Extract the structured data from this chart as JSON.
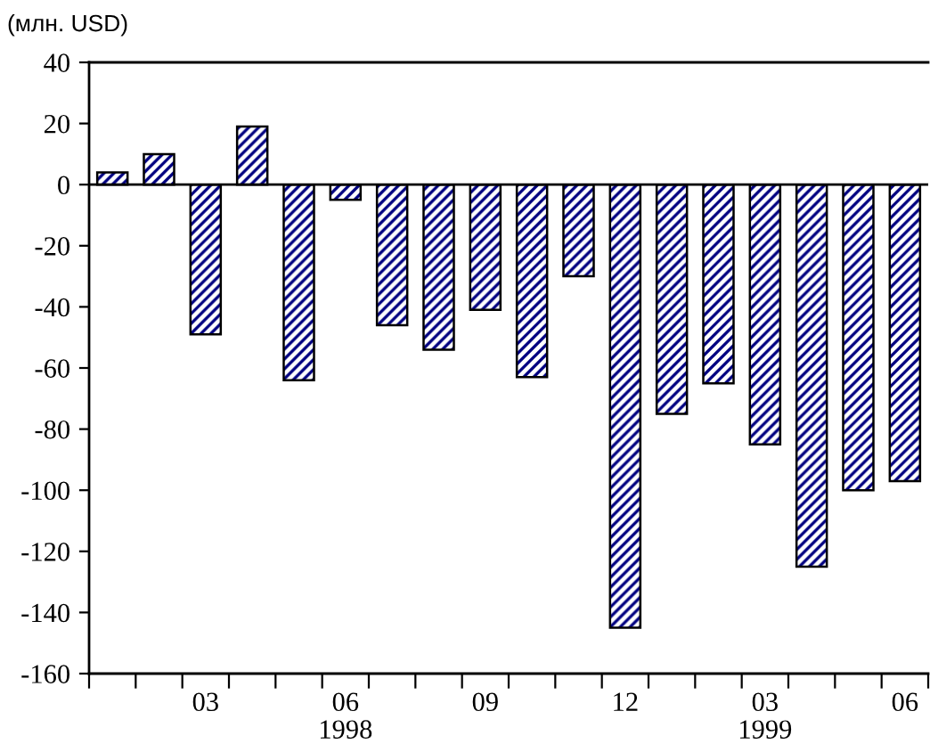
{
  "chart_data": {
    "type": "bar",
    "ylabel": "(млн. USD)",
    "categories": [
      null,
      null,
      "03",
      null,
      null,
      "06",
      null,
      null,
      "09",
      null,
      null,
      "12",
      null,
      null,
      "03",
      null,
      null,
      "06"
    ],
    "values": [
      4,
      10,
      -49,
      19,
      -64,
      -5,
      -46,
      -54,
      -41,
      -63,
      -30,
      -145,
      -75,
      -65,
      -85,
      -125,
      -100,
      -97
    ],
    "color": "#000080",
    "ylim": [
      -160,
      40
    ],
    "yticks": [
      -160,
      -140,
      -120,
      -100,
      -80,
      -60,
      -40,
      -20,
      0,
      20,
      40
    ],
    "annotations": [
      "1998",
      "1999"
    ]
  }
}
